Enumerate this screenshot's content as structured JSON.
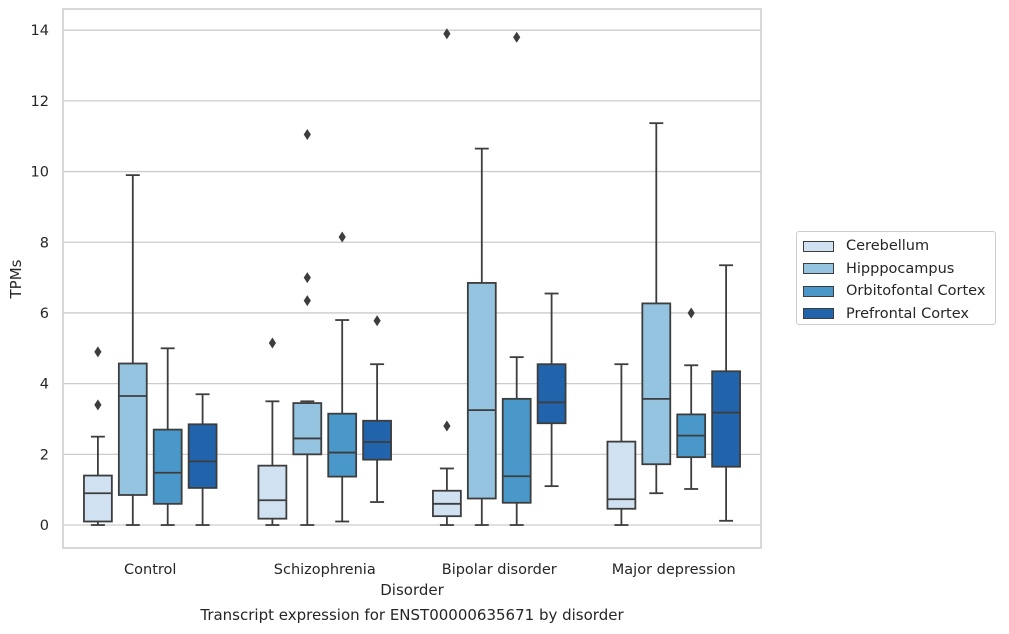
{
  "chart_data": {
    "type": "box",
    "xlabel": "Disorder",
    "ylabel": "TPMs",
    "caption": "Transcript expression for ENST00000635671 by disorder",
    "categories": [
      "Control",
      "Schizophrenia",
      "Bipolar disorder",
      "Major depression"
    ],
    "ylim": [
      -0.65,
      14.6
    ],
    "yticks": [
      0,
      2,
      4,
      6,
      8,
      10,
      12,
      14
    ],
    "grid": true,
    "legend_position": "right",
    "series": [
      {
        "name": "Cerebellum",
        "color": "#d0e1f2",
        "boxes": [
          {
            "whislo": 0.0,
            "q1": 0.1,
            "med": 0.9,
            "q3": 1.4,
            "whishi": 2.5,
            "fliers": [
              3.4,
              4.9
            ]
          },
          {
            "whislo": 0.0,
            "q1": 0.18,
            "med": 0.7,
            "q3": 1.68,
            "whishi": 3.5,
            "fliers": [
              5.15
            ]
          },
          {
            "whislo": 0.0,
            "q1": 0.25,
            "med": 0.6,
            "q3": 0.97,
            "whishi": 1.6,
            "fliers": [
              2.8,
              13.9
            ]
          },
          {
            "whislo": 0.0,
            "q1": 0.46,
            "med": 0.73,
            "q3": 2.36,
            "whishi": 4.55,
            "fliers": []
          }
        ]
      },
      {
        "name": "Hipppocampus",
        "color": "#94c4df",
        "boxes": [
          {
            "whislo": 0.0,
            "q1": 0.85,
            "med": 3.65,
            "q3": 4.57,
            "whishi": 9.9,
            "fliers": []
          },
          {
            "whislo": 0.0,
            "q1": 2.0,
            "med": 2.45,
            "q3": 3.45,
            "whishi": 3.5,
            "fliers": [
              6.35,
              7.0,
              11.05
            ]
          },
          {
            "whislo": 0.0,
            "q1": 0.75,
            "med": 3.25,
            "q3": 6.85,
            "whishi": 10.65,
            "fliers": []
          },
          {
            "whislo": 0.9,
            "q1": 1.72,
            "med": 3.57,
            "q3": 6.27,
            "whishi": 11.37,
            "fliers": []
          }
        ]
      },
      {
        "name": "Orbitofontal Cortex",
        "color": "#4a98c9",
        "boxes": [
          {
            "whislo": 0.0,
            "q1": 0.6,
            "med": 1.48,
            "q3": 2.7,
            "whishi": 5.0,
            "fliers": []
          },
          {
            "whislo": 0.1,
            "q1": 1.37,
            "med": 2.05,
            "q3": 3.15,
            "whishi": 5.8,
            "fliers": [
              8.15
            ]
          },
          {
            "whislo": 0.0,
            "q1": 0.63,
            "med": 1.38,
            "q3": 3.57,
            "whishi": 4.75,
            "fliers": [
              13.8
            ]
          },
          {
            "whislo": 1.02,
            "q1": 1.92,
            "med": 2.53,
            "q3": 3.13,
            "whishi": 4.52,
            "fliers": [
              6.0
            ]
          }
        ]
      },
      {
        "name": "Prefrontal Cortex",
        "color": "#2164ab",
        "boxes": [
          {
            "whislo": 0.0,
            "q1": 1.05,
            "med": 1.8,
            "q3": 2.85,
            "whishi": 3.7,
            "fliers": []
          },
          {
            "whislo": 0.65,
            "q1": 1.85,
            "med": 2.35,
            "q3": 2.95,
            "whishi": 4.55,
            "fliers": [
              5.78
            ]
          },
          {
            "whislo": 1.1,
            "q1": 2.88,
            "med": 3.47,
            "q3": 4.55,
            "whishi": 6.55,
            "fliers": []
          },
          {
            "whislo": 0.12,
            "q1": 1.65,
            "med": 3.18,
            "q3": 4.35,
            "whishi": 7.35,
            "fliers": []
          }
        ]
      }
    ]
  }
}
